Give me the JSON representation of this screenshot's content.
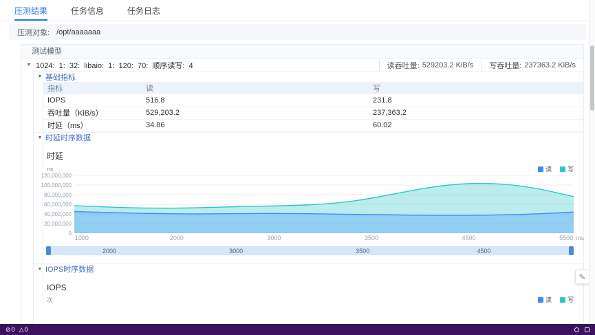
{
  "theme": {
    "accent": "#2877e8",
    "statusbar_bg": "#3a1260",
    "panel_border": "#e9eef4",
    "read_color": "#3f8cff",
    "write_color": "#2ec7c9"
  },
  "icons": {
    "tree_arrow": "▼",
    "ban": "⊘",
    "warning": "△",
    "edit": "✎"
  },
  "tabs": [
    {
      "label": "压测结果",
      "active": true
    },
    {
      "label": "任务信息",
      "active": false
    },
    {
      "label": "任务日志",
      "active": false
    }
  ],
  "target_bar": {
    "label": "压测对象:",
    "value": "/opt/aaaaaaa"
  },
  "panel": {
    "section_title": "测试模型",
    "model_row": {
      "text": "1024:  1:  32:  libaio:  1:  120:  70:  顺序读写:  4",
      "read_tp_label": "读吞吐量:",
      "read_tp_value": "529203.2 KiB/s",
      "write_tp_label": "写吞吐量:",
      "write_tp_value": "237363.2 KiB/s"
    },
    "sections": {
      "basic": "基础指标",
      "latency": "时延时序数据",
      "iops": "IOPS时序数据"
    },
    "metrics_table": {
      "headers": [
        "指标",
        "读",
        "写"
      ],
      "rows": [
        {
          "name": "IOPS",
          "read": "516.8",
          "write": "231.8"
        },
        {
          "name": "吞吐量（KiB/s）",
          "read": "529,203.2",
          "write": "237,363.2"
        },
        {
          "name": "时延（ms）",
          "read": "34.86",
          "write": "60.02"
        }
      ]
    }
  },
  "chart_data": [
    {
      "type": "area",
      "title": "时延",
      "y_unit": "ns",
      "x_unit": "ms",
      "legend": [
        "读",
        "写"
      ],
      "legend_position": "top-right",
      "grid": true,
      "ylim": [
        0,
        120000000
      ],
      "yticks": [
        "120,000,000",
        "100,000,000",
        "80,000,000",
        "60,000,000",
        "40,000,000",
        "20,000,000",
        "0"
      ],
      "xticks": [
        "1000",
        "2000",
        "3000",
        "3500",
        "4500",
        "5500"
      ],
      "series": [
        {
          "name": "读",
          "color": "#3f8cff",
          "values": [
            45000000,
            43000000,
            41000000,
            40000000,
            40000000,
            41000000,
            41000000,
            40000000,
            39000000,
            38000000,
            37000000,
            37000000,
            38000000,
            40000000,
            44000000
          ]
        },
        {
          "name": "写",
          "color": "#2ec7c9",
          "values": [
            57000000,
            54000000,
            52000000,
            52000000,
            54000000,
            56000000,
            57000000,
            60000000,
            68000000,
            82000000,
            96000000,
            104000000,
            103000000,
            93000000,
            76000000
          ]
        }
      ],
      "slider_labels": [
        "2000",
        "3000",
        "3500",
        "4500"
      ]
    },
    {
      "type": "area",
      "title": "IOPS",
      "y_unit": "次",
      "legend": [
        "读",
        "写"
      ]
    }
  ],
  "statusbar": {
    "problems": [
      {
        "icon": "ban",
        "count": "0"
      },
      {
        "icon": "warning",
        "count": "0"
      }
    ]
  }
}
